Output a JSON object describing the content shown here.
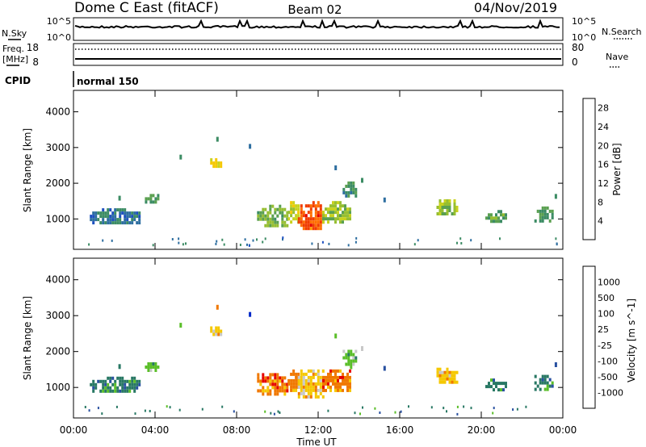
{
  "header": {
    "station": "Dome C East (fitACF)",
    "beam": "Beam 02",
    "date": "04/Nov/2019"
  },
  "top_panel": {
    "left_label": "N.Sky",
    "left_ticks": [
      "10^5",
      "10^0"
    ],
    "right_label": "N.Search",
    "right_ticks": [
      "10^5",
      "10^0"
    ]
  },
  "freq_panel": {
    "left_label_1": "Freq.",
    "left_label_2": "[MHz]",
    "left_ticks": [
      "18",
      "8"
    ],
    "right_label": "Nave",
    "right_ticks": [
      "80",
      "0"
    ]
  },
  "cpid": {
    "label": "CPID",
    "text": "normal 150"
  },
  "colors": {
    "frame": "#000000",
    "grid": "#aaaaaa"
  },
  "chart_data": [
    {
      "type": "heatmap",
      "title": "",
      "xlabel": "",
      "ylabel": "Slant Range [km]",
      "xlim": [
        "00:00",
        "24:00"
      ],
      "ylim": [
        150,
        4600
      ],
      "yticks": [
        1000,
        2000,
        3000,
        4000
      ],
      "colorbar": {
        "label": "Power [dB]",
        "ticks": [
          "4",
          "8",
          "12",
          "16",
          "20",
          "24",
          "28"
        ],
        "colors": [
          "#0000ff",
          "#1e50c0",
          "#2d6ea0",
          "#3c8c64",
          "#5aa050",
          "#96be32",
          "#c8d21e",
          "#f5c800",
          "#ffa000",
          "#ff6e00",
          "#f03c00",
          "#e60000"
        ]
      },
      "regions": [
        {
          "t0": 0.8,
          "t1": 3.2,
          "r0": 900,
          "r1": 1300,
          "value": 6
        },
        {
          "t0": 3.5,
          "t1": 4.1,
          "r0": 1450,
          "r1": 1700,
          "value": 10
        },
        {
          "t0": 6.7,
          "t1": 7.2,
          "r0": 2450,
          "r1": 2700,
          "value": 18
        },
        {
          "t0": 9.0,
          "t1": 10.5,
          "r0": 850,
          "r1": 1400,
          "value": 12
        },
        {
          "t0": 10.5,
          "t1": 11.0,
          "r0": 900,
          "r1": 1500,
          "value": 16
        },
        {
          "t0": 11.0,
          "t1": 12.2,
          "r0": 700,
          "r1": 1500,
          "value": 26
        },
        {
          "t0": 12.2,
          "t1": 13.6,
          "r0": 900,
          "r1": 1500,
          "value": 14
        },
        {
          "t0": 13.2,
          "t1": 13.8,
          "r0": 1600,
          "r1": 2050,
          "value": 8
        },
        {
          "t0": 17.8,
          "t1": 18.8,
          "r0": 1150,
          "r1": 1550,
          "value": 14
        },
        {
          "t0": 20.2,
          "t1": 21.2,
          "r0": 950,
          "r1": 1250,
          "value": 11
        },
        {
          "t0": 22.6,
          "t1": 23.5,
          "r0": 950,
          "r1": 1350,
          "value": 9
        }
      ],
      "spots": [
        {
          "t": 2.2,
          "r": 1650,
          "value": 6
        },
        {
          "t": 5.2,
          "r": 2800,
          "value": 6
        },
        {
          "t": 7.0,
          "r": 3300,
          "value": 8
        },
        {
          "t": 8.6,
          "r": 3100,
          "value": 6
        },
        {
          "t": 12.8,
          "r": 2500,
          "value": 6
        },
        {
          "t": 14.1,
          "r": 2150,
          "value": 6
        },
        {
          "t": 15.2,
          "r": 1600,
          "value": 6
        },
        {
          "t": 23.6,
          "r": 1700,
          "value": 6
        }
      ]
    },
    {
      "type": "heatmap",
      "title": "",
      "xlabel": "Time UT",
      "ylabel": "Slant Range [km]",
      "xticks": [
        "00:00",
        "04:00",
        "08:00",
        "12:00",
        "16:00",
        "20:00",
        "00:00"
      ],
      "xlim": [
        "00:00",
        "24:00"
      ],
      "ylim": [
        150,
        4600
      ],
      "yticks": [
        1000,
        2000,
        3000,
        4000
      ],
      "colorbar": {
        "label": "Velocity [m s^-1]",
        "ticks": [
          "1000",
          "500",
          "100",
          "25",
          "-25",
          "-100",
          "-500",
          "-1000"
        ],
        "colors": [
          "#0028c8",
          "#2850a0",
          "#287864",
          "#5abe28",
          "#c8c8c8",
          "#f5c800",
          "#f07800",
          "#e60000"
        ]
      },
      "regions": [
        {
          "t0": 0.8,
          "t1": 3.2,
          "r0": 900,
          "r1": 1300,
          "value": 100
        },
        {
          "t0": 3.5,
          "t1": 4.1,
          "r0": 1450,
          "r1": 1700,
          "value": 25
        },
        {
          "t0": 6.7,
          "t1": 7.2,
          "r0": 2450,
          "r1": 2700,
          "value": -100
        },
        {
          "t0": 9.0,
          "t1": 10.5,
          "r0": 850,
          "r1": 1400,
          "value": -500
        },
        {
          "t0": 10.5,
          "t1": 11.0,
          "r0": 900,
          "r1": 1500,
          "value": -500
        },
        {
          "t0": 11.0,
          "t1": 12.2,
          "r0": 700,
          "r1": 1500,
          "value": -100
        },
        {
          "t0": 12.2,
          "t1": 13.6,
          "r0": 900,
          "r1": 1500,
          "value": -500
        },
        {
          "t0": 13.2,
          "t1": 13.8,
          "r0": 1600,
          "r1": 2050,
          "value": 25
        },
        {
          "t0": 17.8,
          "t1": 18.8,
          "r0": 1150,
          "r1": 1550,
          "value": -100
        },
        {
          "t0": 20.2,
          "t1": 21.2,
          "r0": 950,
          "r1": 1250,
          "value": 100
        },
        {
          "t0": 22.6,
          "t1": 23.5,
          "r0": 950,
          "r1": 1350,
          "value": 100
        }
      ],
      "spots": [
        {
          "t": 2.2,
          "r": 1650,
          "value": 25
        },
        {
          "t": 5.2,
          "r": 2800,
          "value": 25
        },
        {
          "t": 7.0,
          "r": 3300,
          "value": -500
        },
        {
          "t": 8.6,
          "r": 3100,
          "value": 1000
        },
        {
          "t": 12.8,
          "r": 2500,
          "value": 25
        },
        {
          "t": 14.1,
          "r": 2150,
          "value": 25
        },
        {
          "t": 15.2,
          "r": 1600,
          "value": 100
        },
        {
          "t": 23.6,
          "r": 1700,
          "value": 100
        }
      ]
    }
  ]
}
